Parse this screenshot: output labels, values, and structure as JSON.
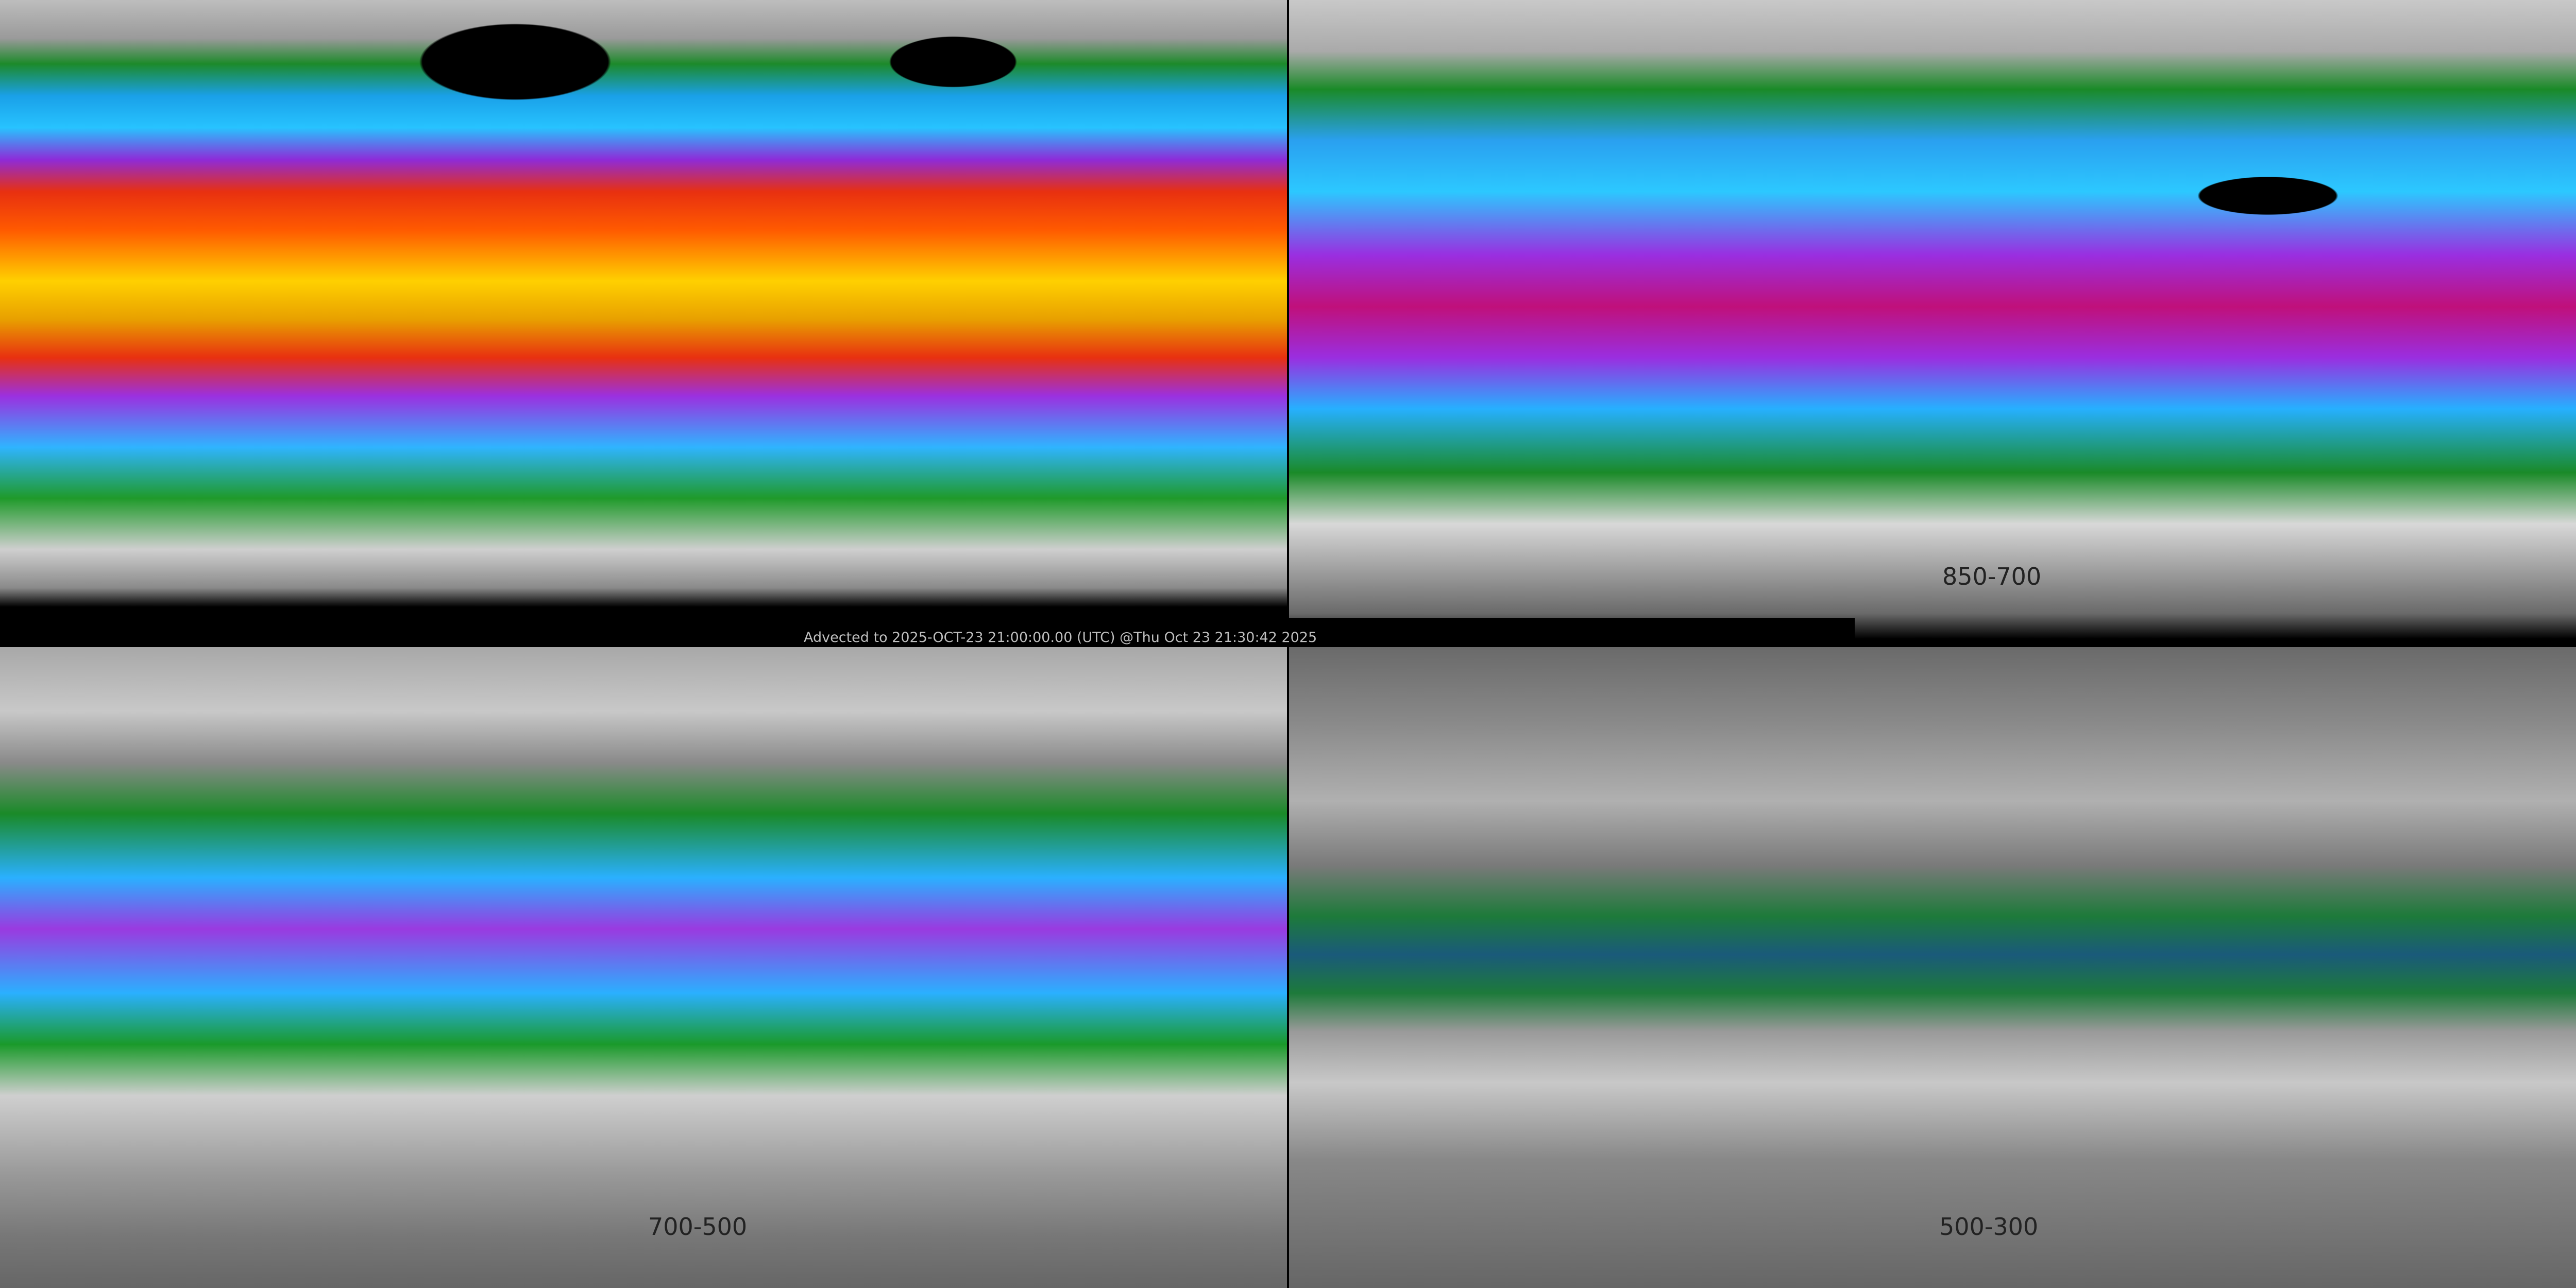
{
  "timestamp": "Advected to 2025-OCT-23 21:00:00.00 (UTC) @Thu Oct 23 21:30:42 2025",
  "panels": [
    {
      "label": ""
    },
    {
      "label": "850-700"
    },
    {
      "label": "700-500"
    },
    {
      "label": "500-300"
    }
  ],
  "colors": {
    "background": "#000000",
    "low_moisture": "#bdbdbd",
    "green": "#1a8a28",
    "blue": "#2ab0ff",
    "purple": "#9a2ee0",
    "red": "#e83010",
    "orange": "#ff5a00",
    "yellow": "#ffd000",
    "label_text": "#222222",
    "stamp_text": "#bfbfbf"
  }
}
